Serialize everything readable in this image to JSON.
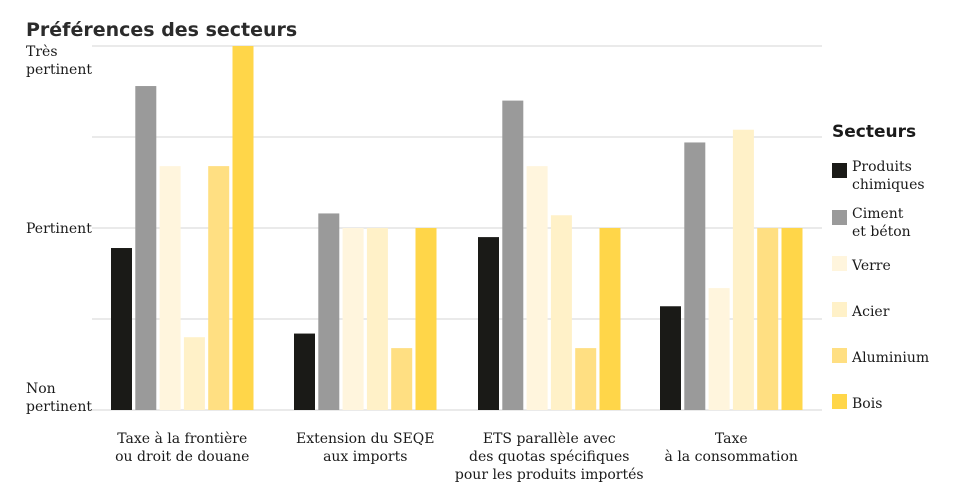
{
  "chart_data": {
    "type": "bar",
    "title": "Préférences des secteurs",
    "y_levels": [
      {
        "value": 0,
        "label": [
          "Non",
          "pertinent"
        ]
      },
      {
        "value": 1,
        "label": [
          "Pertinent"
        ]
      },
      {
        "value": 2,
        "label": [
          "Très",
          "pertinent"
        ]
      }
    ],
    "ylim": [
      0,
      2
    ],
    "categories": [
      [
        "Taxe à la frontière",
        "ou droit de douane"
      ],
      [
        "Extension du SEQE",
        "aux imports"
      ],
      [
        "ETS parallèle avec",
        "des quotas spécifiques",
        "pour les produits importés"
      ],
      [
        "Taxe",
        "à la consommation"
      ]
    ],
    "series": [
      {
        "name": [
          "Produits",
          "chimiques"
        ],
        "color": "#1a1a17",
        "values": [
          0.89,
          0.42,
          0.95,
          0.57
        ]
      },
      {
        "name": [
          "Ciment",
          "et béton"
        ],
        "color": "#9a9a9a",
        "values": [
          1.78,
          1.08,
          1.7,
          1.47
        ]
      },
      {
        "name": [
          "Verre"
        ],
        "color": "#fff5dd",
        "values": [
          1.34,
          1.0,
          1.34,
          0.67
        ]
      },
      {
        "name": [
          "Acier"
        ],
        "color": "#fff1c8",
        "values": [
          0.4,
          1.0,
          1.07,
          1.54
        ]
      },
      {
        "name": [
          "Aluminium"
        ],
        "color": "#ffdf82",
        "values": [
          1.34,
          0.34,
          0.34,
          1.0
        ]
      },
      {
        "name": [
          "Bois"
        ],
        "color": "#ffd649",
        "values": [
          2.0,
          1.0,
          1.0,
          1.0
        ]
      }
    ],
    "legend": {
      "title": "Secteurs",
      "position": "right"
    },
    "grid": true
  }
}
